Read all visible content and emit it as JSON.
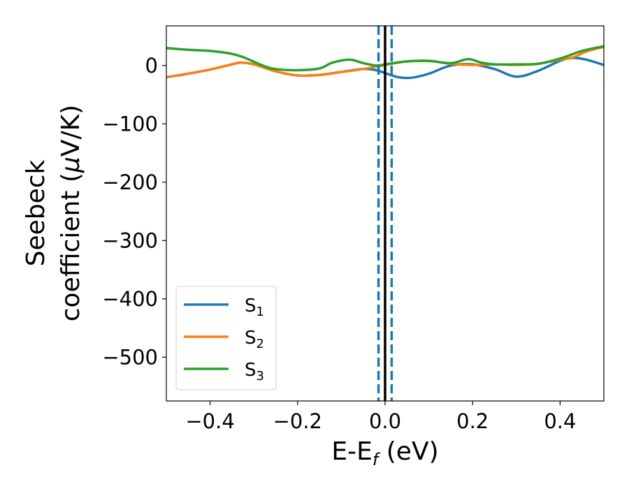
{
  "chart_data": {
    "type": "line",
    "title": "",
    "xlabel": {
      "main": "E-E",
      "sub": "f",
      "tail": " (eV)"
    },
    "ylabel": {
      "line1": "Seebeck",
      "line2a": "coefficient  (",
      "line2mu": "μ",
      "line2b": "V/K)"
    },
    "xlim": [
      -0.5,
      0.5
    ],
    "ylim": [
      -575,
      68
    ],
    "xticks": [
      -0.4,
      -0.2,
      0.0,
      0.2,
      0.4
    ],
    "xtick_labels": [
      "−0.4",
      "−0.2",
      "0.0",
      "0.2",
      "0.4"
    ],
    "yticks": [
      0,
      -100,
      -200,
      -300,
      -400,
      -500
    ],
    "ytick_labels": [
      "0",
      "−100",
      "−200",
      "−300",
      "−400",
      "−500"
    ],
    "grid": false,
    "legend": {
      "placement": "lower-left",
      "entries": [
        {
          "main": "S",
          "sub": "1",
          "color": "#1f77b4"
        },
        {
          "main": "S",
          "sub": "2",
          "color": "#ff7f0e"
        },
        {
          "main": "S",
          "sub": "3",
          "color": "#2ca02c"
        }
      ]
    },
    "vlines": [
      {
        "x": 0.0,
        "color": "#000000",
        "style": "solid"
      },
      {
        "x": -0.015,
        "color": "#1f77b4",
        "style": "dashed"
      },
      {
        "x": 0.015,
        "color": "#1f77b4",
        "style": "dashed"
      }
    ],
    "series": [
      {
        "name": "S1",
        "color": "#1f77b4",
        "x": [
          -0.5,
          -0.45,
          -0.4,
          -0.35,
          -0.33,
          -0.3,
          -0.25,
          -0.2,
          -0.15,
          -0.1,
          -0.05,
          -0.02,
          0.0,
          0.03,
          0.06,
          0.1,
          0.15,
          0.2,
          0.25,
          0.3,
          0.35,
          0.4,
          0.43,
          0.46,
          0.5
        ],
        "y": [
          -20,
          -14,
          -7,
          2,
          5,
          2,
          -10,
          -17,
          -16,
          -11,
          -6,
          -8,
          -13,
          -20,
          -21,
          -14,
          0,
          2,
          -6,
          -19,
          -9,
          8,
          13,
          10,
          1
        ]
      },
      {
        "name": "S2",
        "color": "#ff7f0e",
        "x": [
          -0.5,
          -0.45,
          -0.4,
          -0.35,
          -0.33,
          -0.3,
          -0.25,
          -0.2,
          -0.15,
          -0.1,
          -0.05,
          0.0,
          0.05,
          0.1,
          0.15,
          0.2,
          0.25,
          0.3,
          0.35,
          0.4,
          0.43,
          0.46,
          0.5
        ],
        "y": [
          -20,
          -14,
          -7,
          2,
          5,
          2,
          -10,
          -17,
          -16,
          -11,
          -6,
          1,
          7,
          8,
          3,
          1,
          2,
          1,
          3,
          10,
          14,
          24,
          32
        ]
      },
      {
        "name": "S3",
        "color": "#2ca02c",
        "x": [
          -0.5,
          -0.45,
          -0.4,
          -0.35,
          -0.32,
          -0.28,
          -0.25,
          -0.2,
          -0.15,
          -0.12,
          -0.08,
          -0.05,
          -0.02,
          0.0,
          0.05,
          0.1,
          0.15,
          0.19,
          0.22,
          0.25,
          0.3,
          0.35,
          0.4,
          0.45,
          0.5
        ],
        "y": [
          30,
          27,
          25,
          20,
          13,
          0,
          -6,
          -8,
          -5,
          5,
          10,
          4,
          0,
          2,
          7,
          8,
          4,
          11,
          5,
          2,
          2,
          3,
          12,
          25,
          33
        ]
      }
    ]
  }
}
